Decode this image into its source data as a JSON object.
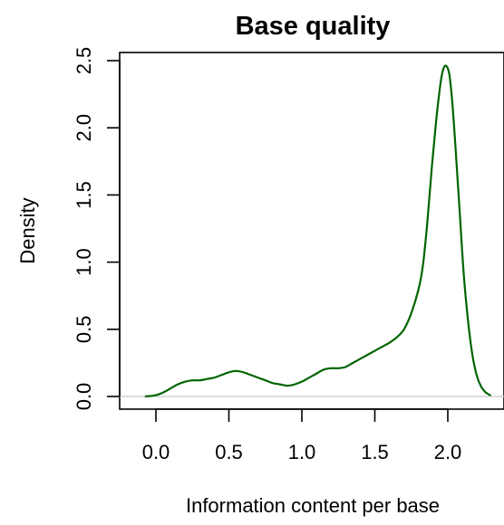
{
  "chart_data": {
    "type": "line",
    "title": "Base quality",
    "xlabel": "Information content per base",
    "ylabel": "Density",
    "xlim": [
      -0.14,
      2.32
    ],
    "ylim": [
      0,
      2.5
    ],
    "xticks": [
      0.0,
      0.5,
      1.0,
      1.5,
      2.0
    ],
    "xtick_labels": [
      "0.0",
      "0.5",
      "1.0",
      "1.5",
      "2.0"
    ],
    "yticks": [
      0.0,
      0.5,
      1.0,
      1.5,
      2.0,
      2.5
    ],
    "ytick_labels": [
      "0.0",
      "0.5",
      "1.0",
      "1.5",
      "2.0",
      "2.5"
    ],
    "grid": false,
    "zero_baseline": true,
    "line_color": "#006400",
    "baseline_color": "#c8c8c8",
    "series": [
      {
        "x": [
          -0.07,
          0.0,
          0.05,
          0.1,
          0.15,
          0.2,
          0.25,
          0.3,
          0.35,
          0.4,
          0.45,
          0.5,
          0.55,
          0.6,
          0.65,
          0.7,
          0.75,
          0.8,
          0.85,
          0.9,
          0.95,
          1.0,
          1.05,
          1.1,
          1.15,
          1.2,
          1.25,
          1.3,
          1.35,
          1.4,
          1.45,
          1.5,
          1.55,
          1.6,
          1.65,
          1.7,
          1.75,
          1.8,
          1.83,
          1.86,
          1.89,
          1.92,
          1.95,
          1.97,
          1.99,
          2.01,
          2.03,
          2.05,
          2.08,
          2.11,
          2.14,
          2.17,
          2.2,
          2.23,
          2.26,
          2.29
        ],
        "values": [
          0.0,
          0.01,
          0.03,
          0.06,
          0.09,
          0.11,
          0.12,
          0.12,
          0.13,
          0.14,
          0.16,
          0.18,
          0.19,
          0.18,
          0.16,
          0.14,
          0.12,
          0.1,
          0.09,
          0.08,
          0.09,
          0.11,
          0.14,
          0.17,
          0.2,
          0.21,
          0.21,
          0.22,
          0.25,
          0.28,
          0.31,
          0.34,
          0.37,
          0.4,
          0.44,
          0.5,
          0.62,
          0.8,
          0.98,
          1.3,
          1.7,
          2.05,
          2.33,
          2.44,
          2.46,
          2.4,
          2.2,
          1.9,
          1.4,
          0.9,
          0.55,
          0.3,
          0.15,
          0.07,
          0.03,
          0.01
        ]
      }
    ]
  }
}
